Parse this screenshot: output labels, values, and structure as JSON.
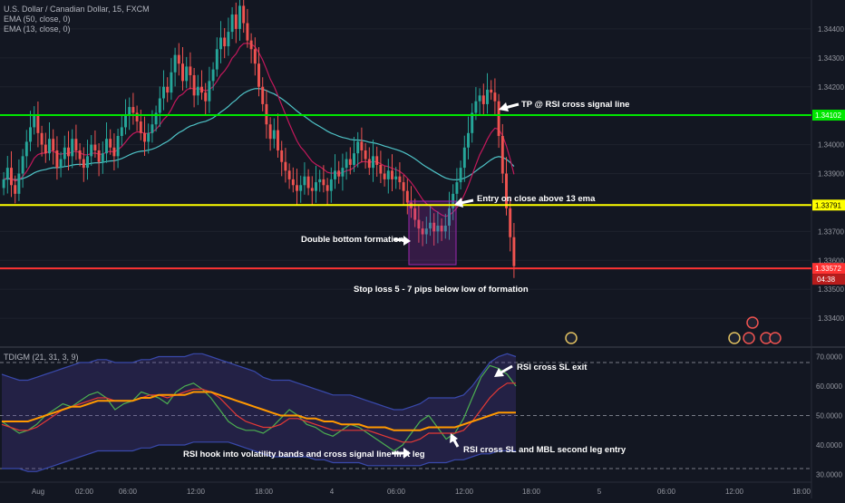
{
  "chart_data": [
    {
      "type": "candlestick",
      "symbol_line": "U.S. Dollar / Canadian Dollar, 15, FXCM",
      "indicator_lines": [
        "EMA (50, close, 0)",
        "EMA (13, close, 0)"
      ],
      "ylim": [
        1.333,
        1.345
      ],
      "y_ticks": [
        "1.34400",
        "1.34300",
        "1.34200",
        "1.34000",
        "1.33900",
        "1.33700",
        "1.33600",
        "1.33500",
        "1.33400"
      ],
      "x_ticks": [
        "Aug",
        "02:00",
        "06:00",
        "12:00",
        "18:00",
        "4",
        "06:00",
        "12:00",
        "18:00",
        "5",
        "06:00",
        "12:00",
        "18:00"
      ],
      "horizontal_levels": [
        {
          "price": 1.34102,
          "label": "1.34102",
          "color": "#00e600"
        },
        {
          "price": 1.33791,
          "label": "1.33791",
          "color": "#ffff00"
        },
        {
          "price": 1.33572,
          "label": "1.33572",
          "color": "#ff3333",
          "countdown": "04:38"
        }
      ],
      "annotations": [
        "TP @ RSI cross signal line",
        "Entry on close above 13 ema",
        "Double bottom formation",
        "Stop loss 5 - 7 pips below low of formation"
      ],
      "colors": {
        "up": "#26a69a",
        "down": "#ef5350",
        "ema50": "#4fc3c7",
        "ema13": "#c2185b"
      },
      "closes": [
        1.3388,
        1.3392,
        1.3386,
        1.3383,
        1.339,
        1.3396,
        1.3401,
        1.3406,
        1.341,
        1.3404,
        1.34,
        1.3397,
        1.3402,
        1.3398,
        1.3392,
        1.3395,
        1.3399,
        1.3396,
        1.3402,
        1.3398,
        1.3395,
        1.3392,
        1.3396,
        1.34,
        1.3398,
        1.3394,
        1.3397,
        1.3402,
        1.3399,
        1.3396,
        1.3403,
        1.3406,
        1.341,
        1.3413,
        1.3411,
        1.3408,
        1.3404,
        1.3401,
        1.3404,
        1.3407,
        1.3411,
        1.3416,
        1.342,
        1.3418,
        1.3425,
        1.3431,
        1.3428,
        1.3422,
        1.3427,
        1.3424,
        1.3417,
        1.342,
        1.3418,
        1.3415,
        1.3422,
        1.3426,
        1.3433,
        1.3437,
        1.3434,
        1.3439,
        1.3445,
        1.344,
        1.3448,
        1.3442,
        1.3436,
        1.3433,
        1.3428,
        1.342,
        1.3414,
        1.3407,
        1.3402,
        1.3405,
        1.3398,
        1.3394,
        1.3391,
        1.3388,
        1.3386,
        1.3384,
        1.3386,
        1.3389,
        1.3385,
        1.3384,
        1.3387,
        1.3388,
        1.3386,
        1.3384,
        1.3388,
        1.3391,
        1.3389,
        1.3392,
        1.3395,
        1.3393,
        1.3397,
        1.3401,
        1.3398,
        1.3395,
        1.3392,
        1.3396,
        1.3393,
        1.339,
        1.3388,
        1.3391,
        1.3388,
        1.3389,
        1.3387,
        1.3384,
        1.338,
        1.3378,
        1.3374,
        1.3371,
        1.3369,
        1.3371,
        1.3373,
        1.337,
        1.3372,
        1.337,
        1.3372,
        1.3378,
        1.3383,
        1.3387,
        1.3392,
        1.3399,
        1.3404,
        1.3411,
        1.3415,
        1.3417,
        1.3414,
        1.3419,
        1.3418,
        1.3415,
        1.3403,
        1.339,
        1.3378,
        1.3368,
        1.3358
      ]
    },
    {
      "type": "line",
      "title": "TDIGM (21, 31, 3, 9)",
      "ylim": [
        28,
        72
      ],
      "y_ticks": [
        "70.0000",
        "60.0000",
        "50.0000",
        "40.0000",
        "30.0000"
      ],
      "dashed_levels": [
        68,
        50,
        32
      ],
      "annotations": [
        "RSI cross SL exit",
        "RSI cross SL and MBL second leg entry",
        "RSI hook into volatility bands and cross signal line first leg"
      ],
      "series": [
        {
          "values": [
            48,
            46,
            44,
            45,
            47,
            50,
            52,
            54,
            53,
            55,
            57,
            58,
            56,
            52,
            54,
            55,
            58,
            57,
            56,
            54,
            58,
            60,
            61,
            59,
            56,
            52,
            48,
            46,
            45,
            45,
            44,
            46,
            49,
            52,
            50,
            47,
            46,
            44,
            43,
            45,
            47,
            46,
            44,
            42,
            40,
            38,
            40,
            44,
            48,
            50,
            46,
            42,
            44,
            49,
            56,
            63,
            67,
            66,
            64,
            60
          ]
        },
        {
          "values": [
            47,
            46,
            45,
            45,
            46,
            48,
            50,
            52,
            53,
            54,
            55,
            56,
            56,
            55,
            55,
            55,
            56,
            57,
            57,
            56,
            57,
            58,
            59,
            59,
            58,
            56,
            53,
            50,
            48,
            47,
            46,
            46,
            47,
            49,
            49,
            48,
            47,
            46,
            45,
            45,
            45,
            45,
            45,
            44,
            43,
            42,
            41,
            41,
            42,
            44,
            44,
            44,
            44,
            45,
            48,
            52,
            56,
            59,
            61,
            61
          ]
        },
        {
          "values": [
            48,
            48,
            48,
            48,
            49,
            50,
            51,
            52,
            53,
            53,
            54,
            55,
            55,
            55,
            55,
            55,
            56,
            56,
            57,
            57,
            57,
            57,
            58,
            58,
            58,
            57,
            56,
            55,
            54,
            53,
            52,
            51,
            50,
            50,
            50,
            49,
            49,
            48,
            48,
            47,
            47,
            47,
            46,
            46,
            46,
            45,
            45,
            45,
            45,
            46,
            46,
            46,
            46,
            47,
            48,
            49,
            50,
            51,
            51,
            51
          ]
        },
        {
          "values": [
            64,
            63,
            62,
            62,
            63,
            64,
            65,
            66,
            67,
            68,
            68,
            69,
            69,
            68,
            68,
            68,
            69,
            69,
            70,
            70,
            70,
            70,
            71,
            71,
            70,
            69,
            68,
            67,
            66,
            65,
            63,
            62,
            62,
            62,
            61,
            60,
            59,
            58,
            57,
            57,
            57,
            56,
            55,
            54,
            53,
            52,
            52,
            53,
            54,
            56,
            56,
            56,
            56,
            57,
            60,
            64,
            68,
            70,
            71,
            70
          ]
        },
        {
          "values": [
            32,
            32,
            32,
            31,
            31,
            32,
            33,
            34,
            35,
            36,
            37,
            38,
            38,
            38,
            38,
            38,
            39,
            39,
            40,
            40,
            40,
            40,
            41,
            41,
            41,
            41,
            41,
            40,
            39,
            38,
            37,
            36,
            36,
            36,
            36,
            36,
            35,
            35,
            34,
            34,
            34,
            34,
            33,
            33,
            33,
            33,
            33,
            33,
            33,
            34,
            34,
            34,
            35,
            35,
            36,
            37,
            37,
            38,
            38,
            38
          ]
        }
      ]
    }
  ]
}
